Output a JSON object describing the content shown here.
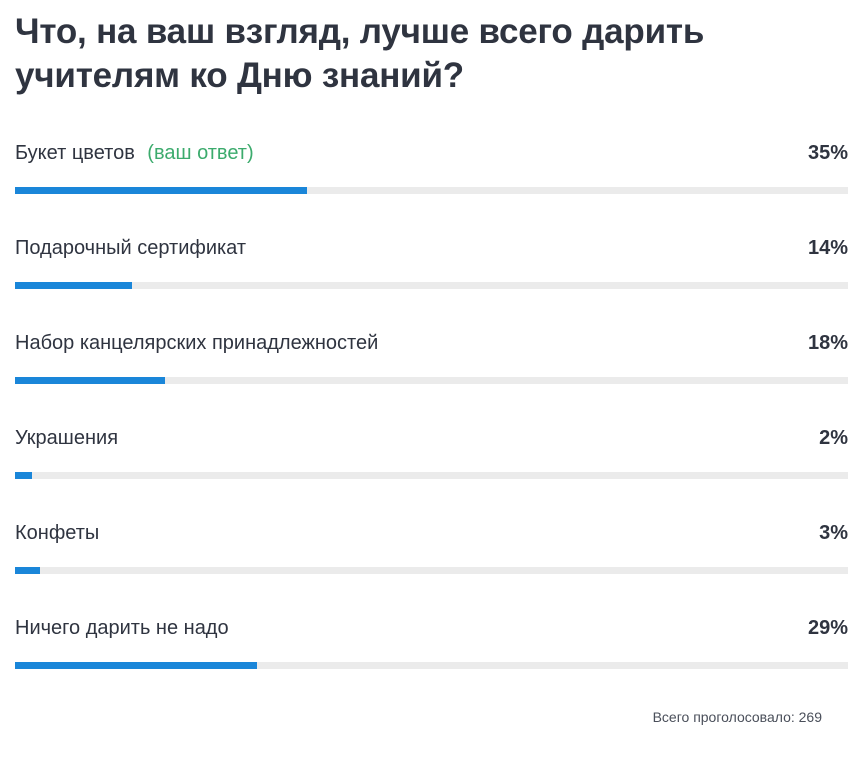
{
  "poll": {
    "question": "Что, на ваш взгляд, лучше всего дарить учителям ко Дню знаний?",
    "your_answer_label": "(ваш ответ)",
    "options": [
      {
        "label": "Букет цветов",
        "percent_text": "35%",
        "percent": 35,
        "is_your_answer": true
      },
      {
        "label": "Подарочный сертификат",
        "percent_text": "14%",
        "percent": 14,
        "is_your_answer": false
      },
      {
        "label": "Набор канцелярских принадлежностей",
        "percent_text": "18%",
        "percent": 18,
        "is_your_answer": false
      },
      {
        "label": "Украшения",
        "percent_text": "2%",
        "percent": 2,
        "is_your_answer": false
      },
      {
        "label": "Конфеты",
        "percent_text": "3%",
        "percent": 3,
        "is_your_answer": false
      },
      {
        "label": "Ничего дарить не надо",
        "percent_text": "29%",
        "percent": 29,
        "is_your_answer": false
      }
    ],
    "total_label": "Всего проголосовало: 269"
  },
  "colors": {
    "bar_fill": "#1a86d9",
    "bar_track": "#ebebeb",
    "your_answer": "#3cab6d",
    "text": "#2f3440"
  }
}
